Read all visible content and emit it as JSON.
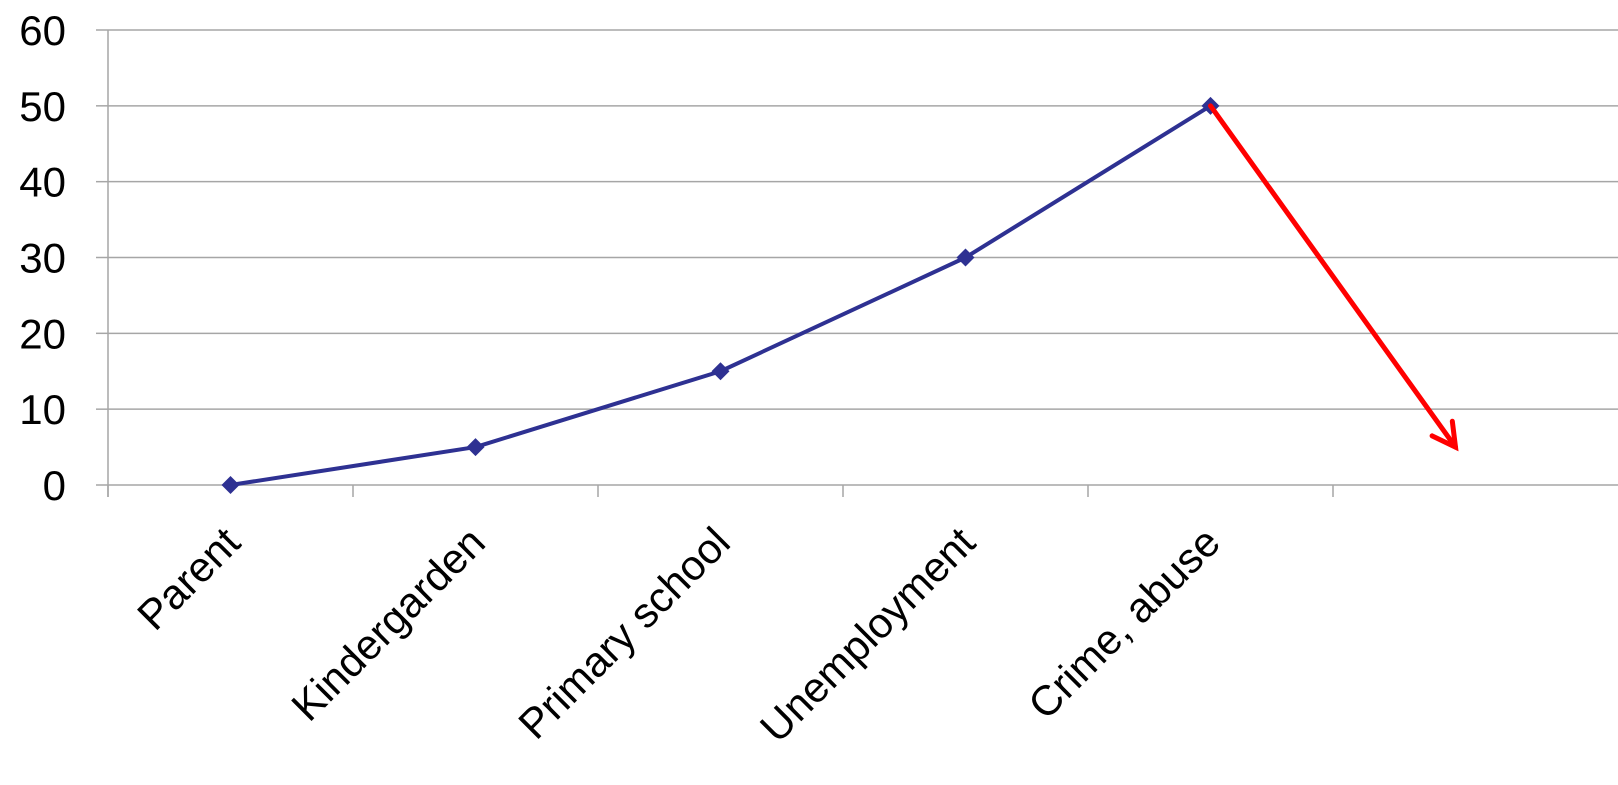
{
  "chart_data": {
    "type": "line",
    "categories": [
      "Parent",
      "Kindergarden",
      "Primary school",
      "Unemployment",
      "Crime, abuse"
    ],
    "series": [
      {
        "values": [
          0,
          5,
          15,
          30,
          50
        ]
      }
    ],
    "ylim": [
      0,
      60
    ],
    "yticks": [
      "0",
      "10",
      "20",
      "30",
      "40",
      "50",
      "60"
    ],
    "grid": true,
    "title": "",
    "xlabel": "",
    "ylabel": "",
    "annotations": [
      {
        "type": "arrow",
        "from_category": "Crime, abuse",
        "from_value": 50,
        "to_value": 5,
        "color": "#ff0000",
        "description": "downward arrow from last point"
      }
    ],
    "colors": {
      "line": "#2e3192",
      "marker": "#2e3192",
      "grid": "#a6a6a6",
      "arrow": "#ff0000"
    }
  }
}
